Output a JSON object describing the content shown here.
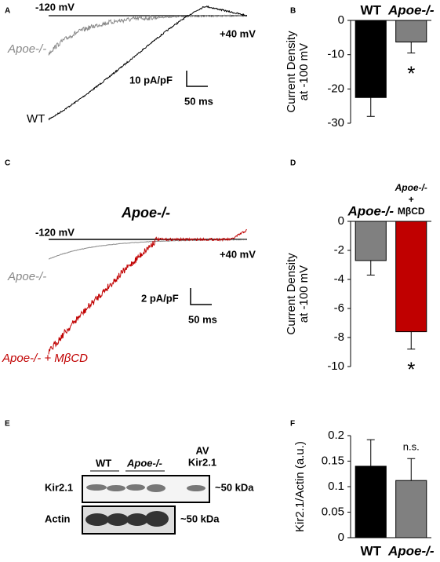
{
  "panel_labels": [
    "A",
    "B",
    "C",
    "D",
    "E",
    "F"
  ],
  "traces_A": {
    "voltage_start": "-120 mV",
    "voltage_end": "+40 mV",
    "labels": [
      "Apoe-/-",
      "WT"
    ],
    "scale_current": "10 pA/pF",
    "scale_time": "50 ms"
  },
  "traces_C": {
    "title": "Apoe-/-",
    "voltage_start": "-120 mV",
    "voltage_end": "+40 mV",
    "labels": [
      "Apoe-/-",
      "Apoe-/- + MβCD"
    ],
    "scale_current": "2 pA/pF",
    "scale_time": "50 ms"
  },
  "blot": {
    "groups": [
      [
        "WT"
      ],
      [
        "Apoe-/-"
      ],
      [
        "AV",
        "Kir2.1"
      ]
    ],
    "bands": [
      "Kir2.1",
      "Actin"
    ],
    "sizes": [
      "~50 kDa",
      "~50 kDa"
    ]
  },
  "chart_data": [
    {
      "type": "bar",
      "categories": [
        [
          "WT"
        ],
        [
          "Apoe-/-"
        ]
      ],
      "category_label_position": "top",
      "values": [
        -22.5,
        -6.3
      ],
      "errors": [
        5.5,
        3.2
      ],
      "colors": [
        "#000000",
        "#808080"
      ],
      "bar_labels": [
        null,
        "*"
      ],
      "ylabel": [
        "Current Density",
        "at -100 mV"
      ],
      "ylim": [
        -30,
        0
      ],
      "yticks": [
        0,
        -10,
        -20,
        -30
      ]
    },
    {
      "type": "bar",
      "categories": [
        [
          "Apoe-/-"
        ],
        [
          "Apoe-/-",
          "+",
          "MβCD"
        ]
      ],
      "category_label_position": "top",
      "values": [
        -2.7,
        -7.6
      ],
      "errors": [
        1.0,
        1.2
      ],
      "colors": [
        "#808080",
        "#c00000"
      ],
      "bar_labels": [
        null,
        "*"
      ],
      "ylabel": [
        "Current Density",
        "at -100 mV"
      ],
      "ylim": [
        -10,
        0
      ],
      "yticks": [
        0,
        -2,
        -4,
        -6,
        -8,
        -10
      ]
    },
    {
      "type": "bar",
      "categories": [
        [
          "WT"
        ],
        [
          "Apoe-/-"
        ]
      ],
      "category_label_position": "bottom",
      "values": [
        0.14,
        0.112
      ],
      "errors": [
        0.052,
        0.043
      ],
      "colors": [
        "#000000",
        "#808080"
      ],
      "bar_labels": [
        null,
        "n.s."
      ],
      "ylabel": [
        "Kir2.1/Actin (a.u.)"
      ],
      "ylim": [
        0,
        0.2
      ],
      "yticks": [
        0,
        0.05,
        0.1,
        0.15,
        0.2
      ]
    }
  ]
}
